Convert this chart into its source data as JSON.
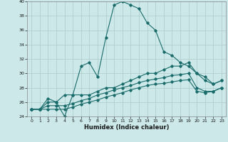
{
  "xlabel": "Humidex (Indice chaleur)",
  "xlim": [
    -0.5,
    23.5
  ],
  "ylim": [
    24,
    40
  ],
  "yticks": [
    24,
    26,
    28,
    30,
    32,
    34,
    36,
    38,
    40
  ],
  "xticks": [
    0,
    1,
    2,
    3,
    4,
    5,
    6,
    7,
    8,
    9,
    10,
    11,
    12,
    13,
    14,
    15,
    16,
    17,
    18,
    19,
    20,
    21,
    22,
    23
  ],
  "background_color": "#cce8e8",
  "grid_color": "#aacccc",
  "line_color": "#1a6b6b",
  "series": [
    {
      "x": [
        0,
        1,
        2,
        3,
        4,
        5,
        6,
        7,
        8,
        9,
        10,
        11,
        12,
        13,
        14,
        15,
        16,
        17,
        18,
        19,
        20,
        21,
        22,
        23
      ],
      "y": [
        25,
        25,
        26.5,
        26,
        24,
        27,
        31,
        31.5,
        29.5,
        35,
        39.5,
        40,
        39.5,
        39,
        37,
        36,
        33,
        32.5,
        31.5,
        31,
        30,
        29,
        28.5,
        29
      ]
    },
    {
      "x": [
        0,
        1,
        2,
        3,
        4,
        5,
        6,
        7,
        8,
        9,
        10,
        11,
        12,
        13,
        14,
        15,
        16,
        17,
        18,
        19,
        20,
        21,
        22,
        23
      ],
      "y": [
        25,
        25,
        26,
        26,
        27,
        27,
        27,
        27,
        27.5,
        28,
        28,
        28.5,
        29,
        29.5,
        30,
        30,
        30.5,
        31,
        31,
        31.5,
        30,
        29.5,
        28.5,
        29
      ]
    },
    {
      "x": [
        0,
        1,
        2,
        3,
        4,
        5,
        6,
        7,
        8,
        9,
        10,
        11,
        12,
        13,
        14,
        15,
        16,
        17,
        18,
        19,
        20,
        21,
        22,
        23
      ],
      "y": [
        25,
        25,
        25.5,
        25.5,
        25.5,
        25.8,
        26.2,
        26.5,
        27,
        27.3,
        27.7,
        28,
        28.3,
        28.7,
        29,
        29.2,
        29.4,
        29.7,
        29.8,
        30,
        28,
        27.5,
        27.5,
        28
      ]
    },
    {
      "x": [
        0,
        1,
        2,
        3,
        4,
        5,
        6,
        7,
        8,
        9,
        10,
        11,
        12,
        13,
        14,
        15,
        16,
        17,
        18,
        19,
        20,
        21,
        22,
        23
      ],
      "y": [
        25,
        25,
        25,
        25,
        25,
        25.3,
        25.7,
        26,
        26.3,
        26.7,
        27,
        27.3,
        27.7,
        28,
        28.3,
        28.5,
        28.6,
        28.8,
        29,
        29.1,
        27.5,
        27.3,
        27.5,
        28
      ]
    }
  ]
}
